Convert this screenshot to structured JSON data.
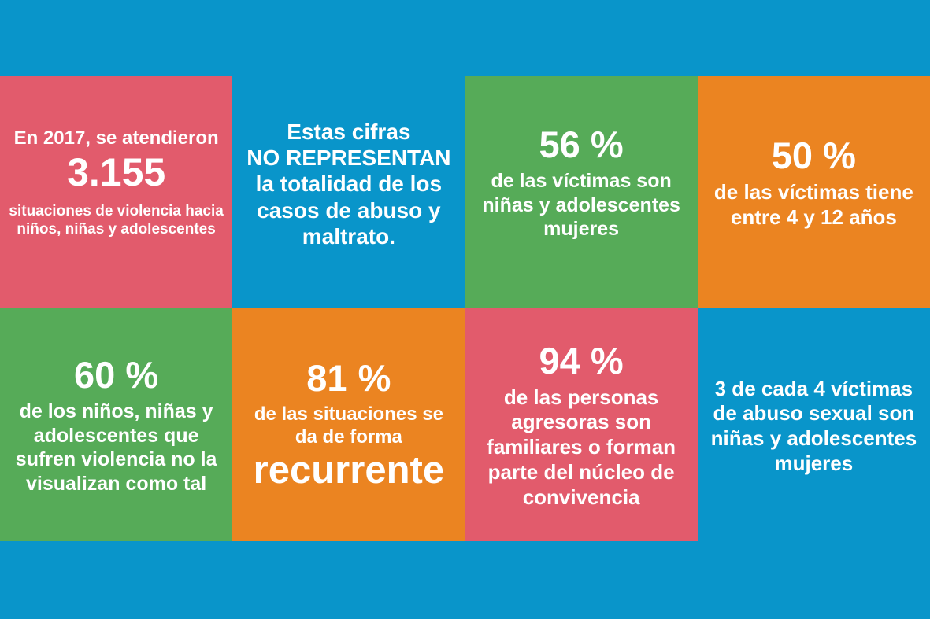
{
  "colors": {
    "background_blue": "#0995CA",
    "tile_pink": "#E25B6C",
    "tile_green": "#56AB58",
    "tile_orange": "#EB8421",
    "tile_blue": "#0995CA",
    "text": "#FFFFFF"
  },
  "tiles": [
    {
      "id": "2017-cases",
      "color": "pink",
      "top": "En 2017, se atendieron",
      "big": "3.155",
      "body": "situaciones de violencia hacia\nniños, niñas y adolescentes"
    },
    {
      "id": "cifras-disclaimer",
      "color": "blue",
      "body": "Estas cifras\nNO REPRESENTAN\nla totalidad de los\ncasos de abuso y\nmaltrato."
    },
    {
      "id": "victimas-mujeres",
      "color": "green",
      "big": "56 %",
      "body": "de las víctimas son\nniñas y adolescentes\nmujeres"
    },
    {
      "id": "victimas-edad",
      "color": "orange",
      "big": "50 %",
      "body": "de las víctimas tiene\nentre 4 y 12 años"
    },
    {
      "id": "no-visualizan",
      "color": "green",
      "big": "60 %",
      "body": "de los niños, niñas y\nadolescentes que\nsufren violencia no la\nvisualizan como tal"
    },
    {
      "id": "recurrente",
      "color": "orange",
      "big": "81 %",
      "body": "de las situaciones se\nda de forma",
      "big_bottom": "recurrente"
    },
    {
      "id": "agresores",
      "color": "pink",
      "big": "94 %",
      "body": "de las personas\nagresoras son\nfamiliares o forman\nparte del núcleo de\nconvivencia"
    },
    {
      "id": "abuso-sexual",
      "color": "blue",
      "body": "3 de cada 4 víctimas\nde abuso sexual son\nniñas y adolescentes\nmujeres"
    }
  ],
  "chart_data": {
    "type": "table",
    "title": "",
    "rows": [
      {
        "value": "3.155",
        "label": "En 2017, se atendieron 3.155 situaciones de violencia hacia niños, niñas y adolescentes"
      },
      {
        "value": "",
        "label": "Estas cifras NO REPRESENTAN la totalidad de los casos de abuso y maltrato."
      },
      {
        "value": "56 %",
        "label": "de las víctimas son niñas y adolescentes mujeres"
      },
      {
        "value": "50 %",
        "label": "de las víctimas tiene entre 4 y 12 años"
      },
      {
        "value": "60 %",
        "label": "de los niños, niñas y adolescentes que sufren violencia no la visualizan como tal"
      },
      {
        "value": "81 %",
        "label": "de las situaciones se da de forma recurrente"
      },
      {
        "value": "94 %",
        "label": "de las personas agresoras son familiares o forman parte del núcleo de convivencia"
      },
      {
        "value": "3 de cada 4",
        "label": "víctimas de abuso sexual son niñas y adolescentes mujeres"
      }
    ]
  }
}
